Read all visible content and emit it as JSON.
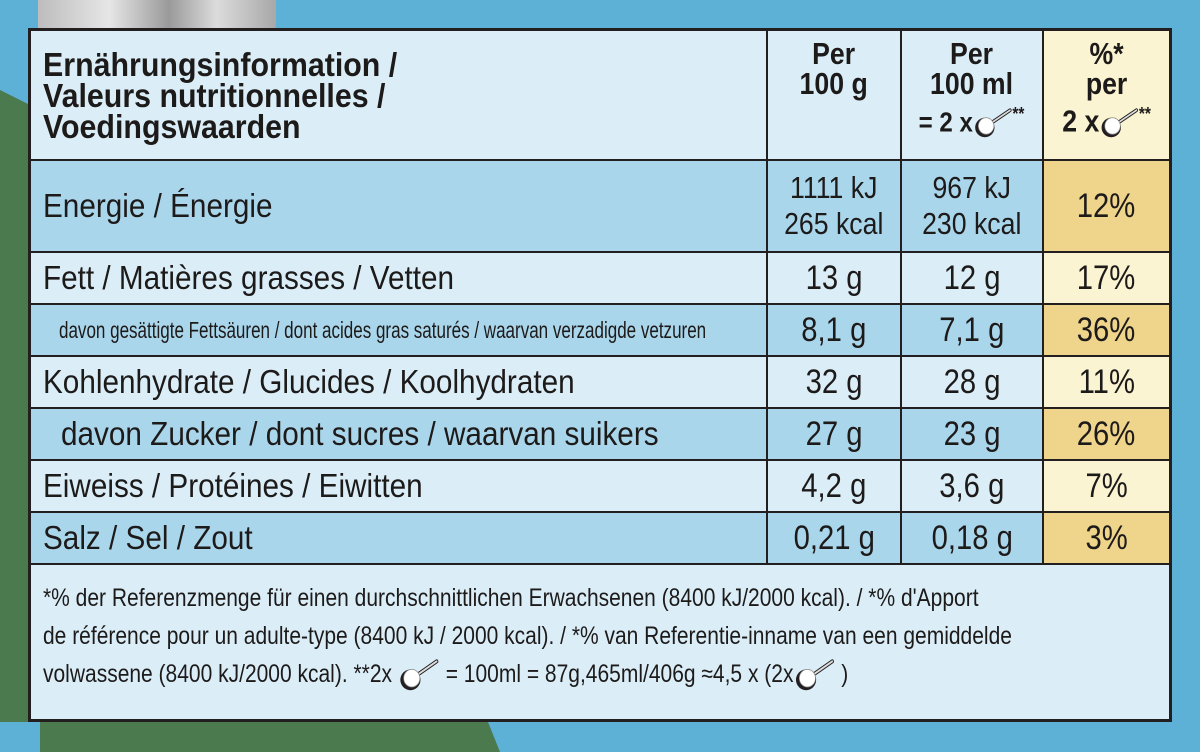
{
  "colors": {
    "background": "#5db0d6",
    "green": "#4a7a4e",
    "light_row": "#dbeef8",
    "dark_row": "#aad6ec",
    "light_pct": "#fbf4d2",
    "dark_pct": "#efd58c"
  },
  "header": {
    "title_lines": [
      "Ernährungsinformation /",
      "Valeurs nutritionnelles /",
      "Voedingswaarden"
    ],
    "col1": [
      "Per",
      "100 g"
    ],
    "col2": [
      "Per",
      "100 ml",
      "= 2 x",
      "**"
    ],
    "col3": [
      "%*",
      "per",
      "2 x",
      "**"
    ],
    "icon": "ladle-icon"
  },
  "rows": [
    {
      "label": "Energie / Énergie",
      "per100g": [
        "1111 kJ",
        "265 kcal"
      ],
      "per100ml": [
        "967 kJ",
        "230 kcal"
      ],
      "pct": "12%"
    },
    {
      "label": "Fett / Matières grasses / Vetten",
      "per100g": "13 g",
      "per100ml": "12 g",
      "pct": "17%"
    },
    {
      "label": "davon gesättigte Fettsäuren / dont acides gras saturés / waarvan verzadigde vetzuren",
      "per100g": "8,1 g",
      "per100ml": "7,1 g",
      "pct": "36%"
    },
    {
      "label": "Kohlenhydrate / Glucides / Koolhydraten",
      "per100g": "32 g",
      "per100ml": "28 g",
      "pct": "11%"
    },
    {
      "label": "davon Zucker / dont sucres / waarvan suikers",
      "per100g": "27 g",
      "per100ml": "23 g",
      "pct": "26%"
    },
    {
      "label": "Eiweiss / Protéines / Eiwitten",
      "per100g": "4,2 g",
      "per100ml": "3,6 g",
      "pct": "7%"
    },
    {
      "label": "Salz / Sel / Zout",
      "per100g": "0,21 g",
      "per100ml": "0,18 g",
      "pct": "3%"
    }
  ],
  "footnote": {
    "line1": "*% der Referenzmenge für einen durchschnittlichen Erwachsenen (8400 kJ/2000 kcal). / *% d'Apport",
    "line2": "de référence pour un adulte-type (8400 kJ / 2000 kcal). / *% van Referentie-inname van een gemiddelde",
    "line3a": "volwassene (8400 kJ/2000 kcal).  **2x",
    "line3b": " = 100ml = 87g,465ml/406g ≈4,5 x (2x",
    "line3c": " )"
  }
}
